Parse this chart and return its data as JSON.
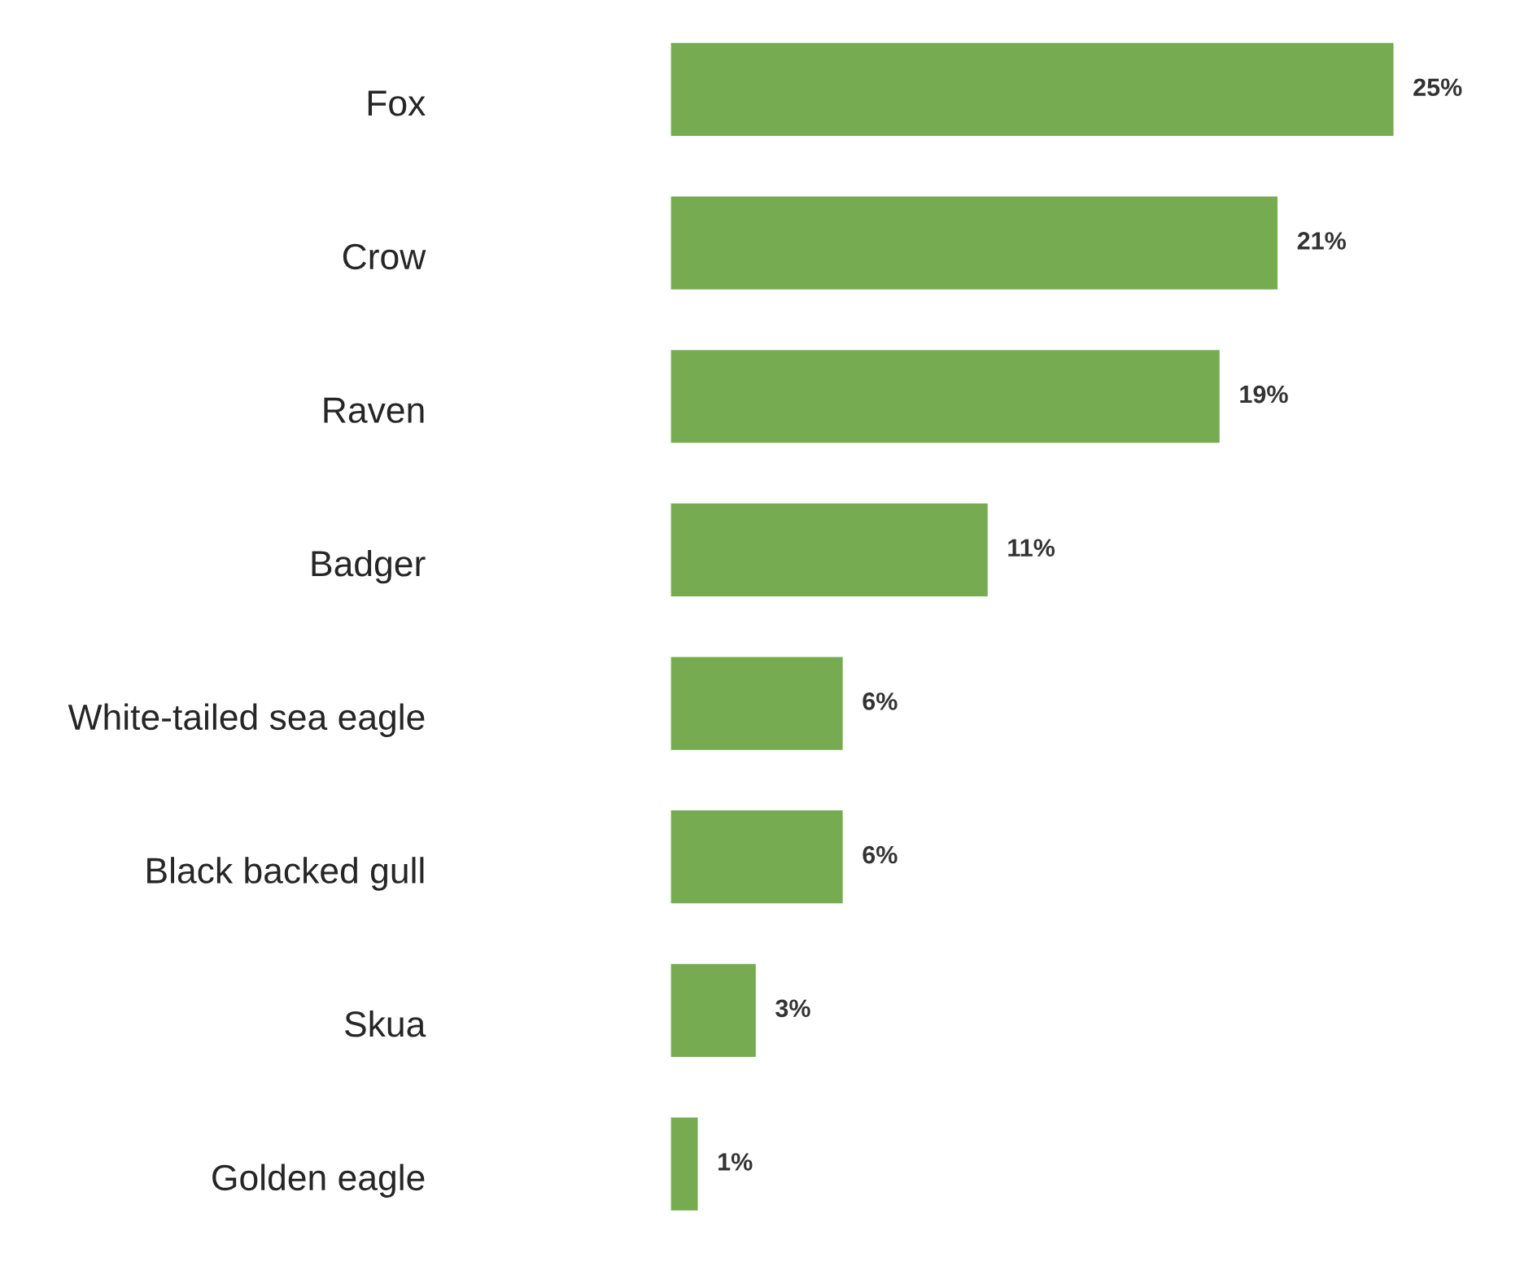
{
  "chart_data": {
    "type": "bar",
    "orientation": "horizontal",
    "categories": [
      "Fox",
      "Crow",
      "Raven",
      "Badger",
      "White-tailed sea eagle",
      "Black backed gull",
      "Skua",
      "Golden eagle"
    ],
    "values": [
      25,
      21,
      19,
      11,
      6,
      6,
      3,
      1
    ],
    "value_labels": [
      "25%",
      "21%",
      "19%",
      "11%",
      "6%",
      "6%",
      "3%",
      "1%"
    ],
    "color": "#77ab52",
    "grid": false,
    "legend": false
  }
}
